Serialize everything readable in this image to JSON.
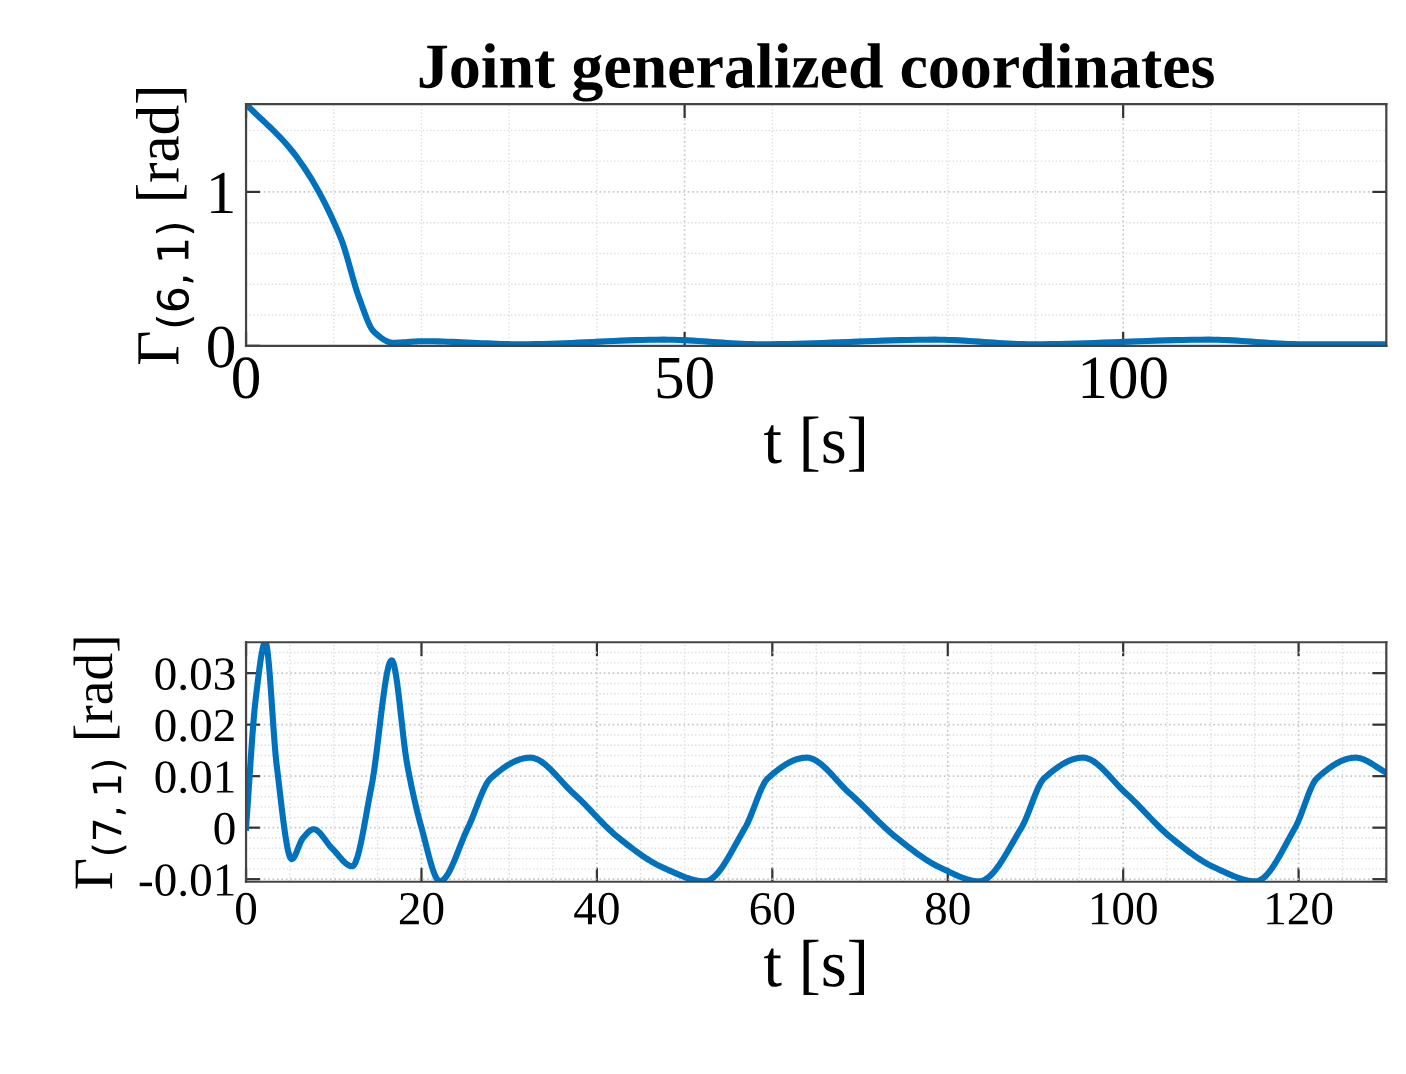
{
  "chart_data": [
    {
      "type": "line",
      "title": "Joint generalized coordinates",
      "xlabel": "t [s]",
      "ylabel": "Γ$_{(6,1)}$ [rad]",
      "xlim": [
        0,
        130
      ],
      "ylim": [
        0,
        1.57
      ],
      "xticks": [
        0,
        50,
        100
      ],
      "yticks": [
        0,
        1
      ],
      "grid": true,
      "line_style": "solid",
      "marker": "none",
      "series": [
        {
          "color": "#0072bd",
          "x": [
            0,
            5.6,
            10.8,
            12.9,
            14.6,
            16.8,
            20.2,
            31.4,
            47.6,
            58.8,
            78.5,
            89.7,
            109.8,
            120.5,
            130
          ],
          "values": [
            1.57,
            1.24,
            0.7,
            0.31,
            0.09,
            0.02,
            0.03,
            0.01,
            0.04,
            0.01,
            0.04,
            0.01,
            0.04,
            0.01,
            0.01
          ]
        }
      ]
    },
    {
      "type": "line",
      "xlabel": "t [s]",
      "ylabel": "Γ$_{(7,1)}$ [rad]",
      "xlim": [
        0,
        130
      ],
      "ylim": [
        -0.0105,
        0.036
      ],
      "xticks": [
        0,
        20,
        40,
        60,
        80,
        100,
        120
      ],
      "yticks": [
        {
          "value": -0.01,
          "label": "-0.01"
        },
        0,
        0.01,
        0.02,
        0.03
      ],
      "grid": true,
      "line_style": "solid",
      "marker": "none",
      "series": [
        {
          "color": "#0072bd",
          "x": [
            0,
            1.1,
            2.2,
            3.5,
            5.2,
            6.5,
            7.7,
            9.8,
            12.1,
            14.3,
            16.6,
            18.4,
            20,
            22.1,
            25.3,
            27.9,
            32.4,
            37.3,
            42.5,
            47.6,
            52.3,
            56.9,
            59.5,
            63.9,
            68.8,
            74.2,
            79.2,
            83.6,
            88.4,
            91,
            95.4,
            100.3,
            105.5,
            110.5,
            115.1,
            119.6,
            122.1,
            126.5,
            130
          ],
          "values": [
            0,
            0.025,
            0.036,
            0.012,
            -0.0061,
            -0.002,
            -0.0003,
            -0.004,
            -0.0075,
            0.008,
            0.0325,
            0.012,
            0,
            -0.0104,
            0,
            0.0096,
            0.0136,
            0.0067,
            -0.002,
            -0.0078,
            -0.0104,
            0,
            0.0096,
            0.0136,
            0.0067,
            -0.002,
            -0.0078,
            -0.0104,
            0,
            0.0096,
            0.0136,
            0.0067,
            -0.002,
            -0.0078,
            -0.0104,
            0,
            0.0096,
            0.0136,
            0.0107
          ]
        }
      ]
    }
  ]
}
